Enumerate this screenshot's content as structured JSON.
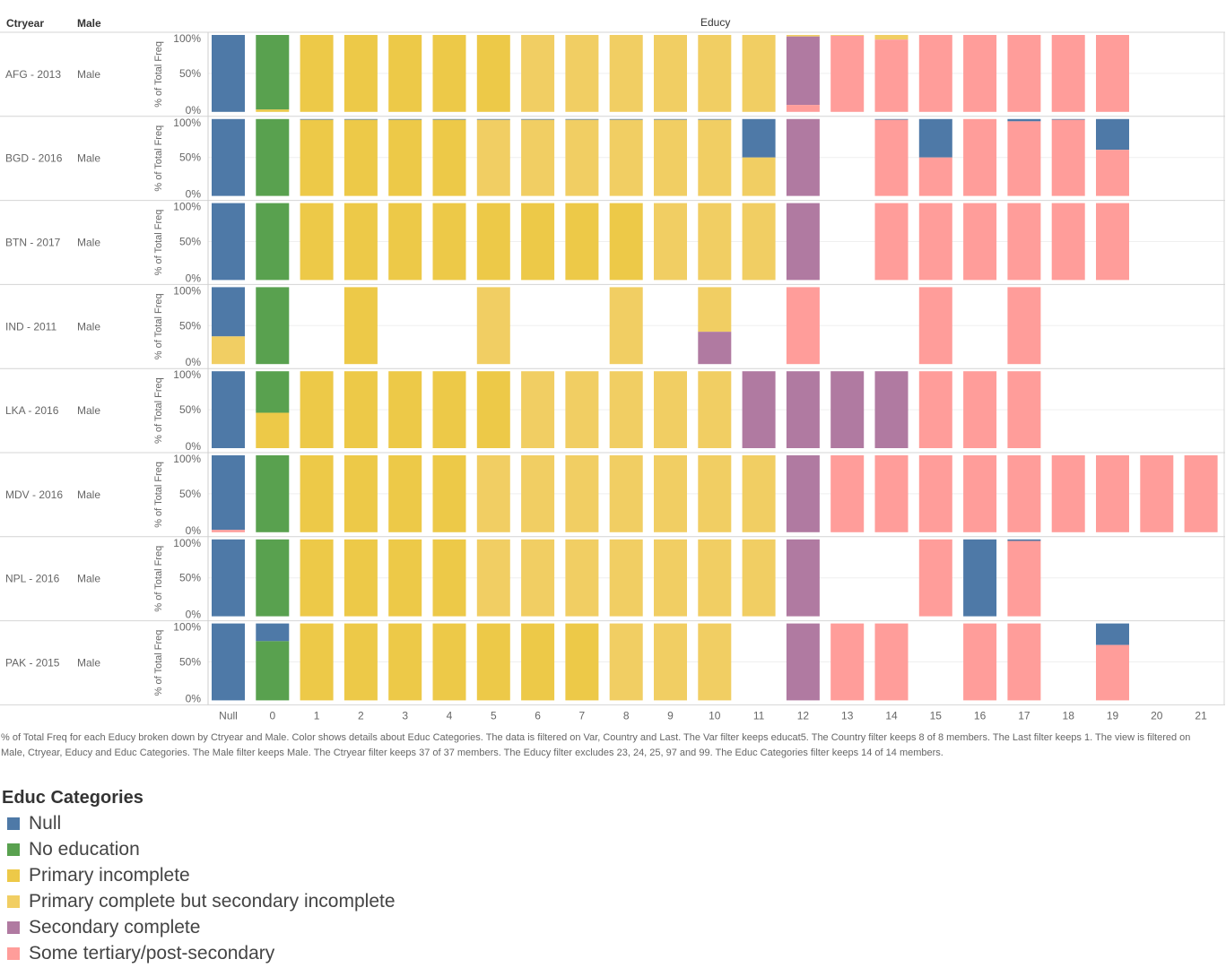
{
  "headers": {
    "ctryear": "Ctryear",
    "male": "Male",
    "educy": "Educy"
  },
  "axis": {
    "ylabel": "% of Total Freq",
    "ticks": [
      "100%",
      "50%",
      "0%"
    ]
  },
  "caption": "% of Total Freq for each Educy broken down by Ctryear and Male.  Color shows details about Educ Categories. The data is filtered on Var, Country and Last. The Var filter keeps educat5. The Country filter keeps 8 of 8 members. The Last filter keeps 1. The view is filtered on Male, Ctryear, Educy and Educ Categories. The Male filter keeps Male. The Ctryear filter keeps 37 of 37 members. The Educy filter excludes 23, 24, 25, 97 and 99. The Educ Categories filter keeps 14 of 14 members.",
  "legend": {
    "title": "Educ Categories",
    "items": [
      {
        "key": "null",
        "label": "Null",
        "color": "#4e79a7"
      },
      {
        "key": "noed",
        "label": "No education",
        "color": "#59a14f"
      },
      {
        "key": "pinc",
        "label": "Primary incomplete",
        "color": "#edc948"
      },
      {
        "key": "pcomp",
        "label": "Primary complete but secondary incomplete",
        "color": "#f1ce63"
      },
      {
        "key": "scomp",
        "label": "Secondary complete",
        "color": "#b07aa1"
      },
      {
        "key": "tert",
        "label": "Some tertiary/post-secondary",
        "color": "#ff9d9a"
      }
    ]
  },
  "chart_data": {
    "type": "bar",
    "stacked": true,
    "normalized": true,
    "ylim": [
      0,
      100
    ],
    "categories": [
      "Null",
      "0",
      "1",
      "2",
      "3",
      "4",
      "5",
      "6",
      "7",
      "8",
      "9",
      "10",
      "11",
      "12",
      "13",
      "14",
      "15",
      "16",
      "17",
      "18",
      "19",
      "20",
      "21"
    ],
    "rows": [
      {
        "ctryear": "AFG - 2013",
        "male": "Male",
        "bars": {
          "Null": [
            [
              "null",
              100
            ]
          ],
          "0": [
            [
              "noed",
              97
            ],
            [
              "pinc",
              3
            ]
          ],
          "1": [
            [
              "pinc",
              100
            ]
          ],
          "2": [
            [
              "pinc",
              100
            ]
          ],
          "3": [
            [
              "pinc",
              100
            ]
          ],
          "4": [
            [
              "pinc",
              100
            ]
          ],
          "5": [
            [
              "pinc",
              100
            ]
          ],
          "6": [
            [
              "pcomp",
              100
            ]
          ],
          "7": [
            [
              "pcomp",
              100
            ]
          ],
          "8": [
            [
              "pcomp",
              100
            ]
          ],
          "9": [
            [
              "pcomp",
              100
            ]
          ],
          "10": [
            [
              "pcomp",
              100
            ]
          ],
          "11": [
            [
              "pcomp",
              100
            ]
          ],
          "12": [
            [
              "pcomp",
              2
            ],
            [
              "scomp",
              89
            ],
            [
              "tert",
              9
            ]
          ],
          "13": [
            [
              "pcomp",
              1
            ],
            [
              "tert",
              99
            ]
          ],
          "14": [
            [
              "pcomp",
              6
            ],
            [
              "tert",
              94
            ]
          ],
          "15": [
            [
              "tert",
              100
            ]
          ],
          "16": [
            [
              "tert",
              100
            ]
          ],
          "17": [
            [
              "tert",
              100
            ]
          ],
          "18": [
            [
              "tert",
              100
            ]
          ],
          "19": [
            [
              "tert",
              100
            ]
          ]
        }
      },
      {
        "ctryear": "BGD - 2016",
        "male": "Male",
        "bars": {
          "Null": [
            [
              "null",
              100
            ]
          ],
          "0": [
            [
              "noed",
              100
            ]
          ],
          "1": [
            [
              "null",
              1
            ],
            [
              "pinc",
              99
            ]
          ],
          "2": [
            [
              "null",
              1
            ],
            [
              "pinc",
              99
            ]
          ],
          "3": [
            [
              "null",
              1
            ],
            [
              "pinc",
              99
            ]
          ],
          "4": [
            [
              "null",
              1
            ],
            [
              "pinc",
              99
            ]
          ],
          "5": [
            [
              "null",
              1
            ],
            [
              "pcomp",
              99
            ]
          ],
          "6": [
            [
              "null",
              1
            ],
            [
              "pcomp",
              99
            ]
          ],
          "7": [
            [
              "null",
              1
            ],
            [
              "pcomp",
              99
            ]
          ],
          "8": [
            [
              "null",
              1
            ],
            [
              "pcomp",
              99
            ]
          ],
          "9": [
            [
              "null",
              1
            ],
            [
              "pcomp",
              99
            ]
          ],
          "10": [
            [
              "null",
              1
            ],
            [
              "pcomp",
              99
            ]
          ],
          "11": [
            [
              "null",
              50
            ],
            [
              "pcomp",
              50
            ]
          ],
          "12": [
            [
              "scomp",
              100
            ]
          ],
          "14": [
            [
              "null",
              1
            ],
            [
              "tert",
              99
            ]
          ],
          "15": [
            [
              "null",
              50
            ],
            [
              "tert",
              50
            ]
          ],
          "16": [
            [
              "tert",
              100
            ]
          ],
          "17": [
            [
              "null",
              3
            ],
            [
              "tert",
              97
            ]
          ],
          "18": [
            [
              "null",
              1
            ],
            [
              "tert",
              99
            ]
          ],
          "19": [
            [
              "null",
              40
            ],
            [
              "tert",
              60
            ]
          ]
        }
      },
      {
        "ctryear": "BTN - 2017",
        "male": "Male",
        "bars": {
          "Null": [
            [
              "null",
              100
            ]
          ],
          "0": [
            [
              "noed",
              100
            ]
          ],
          "1": [
            [
              "pinc",
              100
            ]
          ],
          "2": [
            [
              "pinc",
              100
            ]
          ],
          "3": [
            [
              "pinc",
              100
            ]
          ],
          "4": [
            [
              "pinc",
              100
            ]
          ],
          "5": [
            [
              "pinc",
              100
            ]
          ],
          "6": [
            [
              "pinc",
              100
            ]
          ],
          "7": [
            [
              "pinc",
              100
            ]
          ],
          "8": [
            [
              "pinc",
              100
            ]
          ],
          "9": [
            [
              "pcomp",
              100
            ]
          ],
          "10": [
            [
              "pcomp",
              100
            ]
          ],
          "11": [
            [
              "pcomp",
              100
            ]
          ],
          "12": [
            [
              "scomp",
              100
            ]
          ],
          "14": [
            [
              "tert",
              100
            ]
          ],
          "15": [
            [
              "tert",
              100
            ]
          ],
          "16": [
            [
              "tert",
              100
            ]
          ],
          "17": [
            [
              "tert",
              100
            ]
          ],
          "18": [
            [
              "tert",
              100
            ]
          ],
          "19": [
            [
              "tert",
              100
            ]
          ]
        }
      },
      {
        "ctryear": "IND - 2011",
        "male": "Male",
        "bars": {
          "Null": [
            [
              "null",
              64
            ],
            [
              "pcomp",
              36
            ]
          ],
          "0": [
            [
              "noed",
              100
            ]
          ],
          "2": [
            [
              "pinc",
              100
            ]
          ],
          "5": [
            [
              "pcomp",
              100
            ]
          ],
          "8": [
            [
              "pcomp",
              100
            ]
          ],
          "10": [
            [
              "pcomp",
              58
            ],
            [
              "scomp",
              42
            ]
          ],
          "12": [
            [
              "tert",
              100
            ]
          ],
          "15": [
            [
              "tert",
              100
            ]
          ],
          "17": [
            [
              "tert",
              100
            ]
          ]
        }
      },
      {
        "ctryear": "LKA - 2016",
        "male": "Male",
        "bars": {
          "Null": [
            [
              "null",
              100
            ]
          ],
          "0": [
            [
              "noed",
              54
            ],
            [
              "pinc",
              46
            ]
          ],
          "1": [
            [
              "pinc",
              100
            ]
          ],
          "2": [
            [
              "pinc",
              100
            ]
          ],
          "3": [
            [
              "pinc",
              100
            ]
          ],
          "4": [
            [
              "pinc",
              100
            ]
          ],
          "5": [
            [
              "pinc",
              100
            ]
          ],
          "6": [
            [
              "pcomp",
              100
            ]
          ],
          "7": [
            [
              "pcomp",
              100
            ]
          ],
          "8": [
            [
              "pcomp",
              100
            ]
          ],
          "9": [
            [
              "pcomp",
              100
            ]
          ],
          "10": [
            [
              "pcomp",
              100
            ]
          ],
          "11": [
            [
              "scomp",
              100
            ]
          ],
          "12": [
            [
              "scomp",
              100
            ]
          ],
          "13": [
            [
              "scomp",
              100
            ]
          ],
          "14": [
            [
              "scomp",
              100
            ]
          ],
          "15": [
            [
              "tert",
              100
            ]
          ],
          "16": [
            [
              "tert",
              100
            ]
          ],
          "17": [
            [
              "tert",
              100
            ]
          ]
        }
      },
      {
        "ctryear": "MDV - 2016",
        "male": "Male",
        "bars": {
          "Null": [
            [
              "null",
              97
            ],
            [
              "tert",
              3
            ]
          ],
          "0": [
            [
              "noed",
              100
            ]
          ],
          "1": [
            [
              "pinc",
              100
            ]
          ],
          "2": [
            [
              "pinc",
              100
            ]
          ],
          "3": [
            [
              "pinc",
              100
            ]
          ],
          "4": [
            [
              "pinc",
              100
            ]
          ],
          "5": [
            [
              "pcomp",
              100
            ]
          ],
          "6": [
            [
              "pcomp",
              100
            ]
          ],
          "7": [
            [
              "pcomp",
              100
            ]
          ],
          "8": [
            [
              "pcomp",
              100
            ]
          ],
          "9": [
            [
              "pcomp",
              100
            ]
          ],
          "10": [
            [
              "pcomp",
              100
            ]
          ],
          "11": [
            [
              "pcomp",
              100
            ]
          ],
          "12": [
            [
              "scomp",
              100
            ]
          ],
          "13": [
            [
              "tert",
              100
            ]
          ],
          "14": [
            [
              "tert",
              100
            ]
          ],
          "15": [
            [
              "tert",
              100
            ]
          ],
          "16": [
            [
              "tert",
              100
            ]
          ],
          "17": [
            [
              "tert",
              100
            ]
          ],
          "18": [
            [
              "tert",
              100
            ]
          ],
          "19": [
            [
              "tert",
              100
            ]
          ],
          "20": [
            [
              "tert",
              100
            ]
          ],
          "21": [
            [
              "tert",
              100
            ]
          ]
        }
      },
      {
        "ctryear": "NPL - 2016",
        "male": "Male",
        "bars": {
          "Null": [
            [
              "null",
              100
            ]
          ],
          "0": [
            [
              "noed",
              100
            ]
          ],
          "1": [
            [
              "pinc",
              100
            ]
          ],
          "2": [
            [
              "pinc",
              100
            ]
          ],
          "3": [
            [
              "pinc",
              100
            ]
          ],
          "4": [
            [
              "pinc",
              100
            ]
          ],
          "5": [
            [
              "pcomp",
              100
            ]
          ],
          "6": [
            [
              "pcomp",
              100
            ]
          ],
          "7": [
            [
              "pcomp",
              100
            ]
          ],
          "8": [
            [
              "pcomp",
              100
            ]
          ],
          "9": [
            [
              "pcomp",
              100
            ]
          ],
          "10": [
            [
              "pcomp",
              100
            ]
          ],
          "11": [
            [
              "pcomp",
              100
            ]
          ],
          "12": [
            [
              "scomp",
              100
            ]
          ],
          "15": [
            [
              "tert",
              100
            ]
          ],
          "16": [
            [
              "null",
              100
            ]
          ],
          "17": [
            [
              "null",
              2
            ],
            [
              "tert",
              98
            ]
          ]
        }
      },
      {
        "ctryear": "PAK - 2015",
        "male": "Male",
        "bars": {
          "Null": [
            [
              "null",
              100
            ]
          ],
          "0": [
            [
              "null",
              23
            ],
            [
              "noed",
              77
            ]
          ],
          "1": [
            [
              "pinc",
              100
            ]
          ],
          "2": [
            [
              "pinc",
              100
            ]
          ],
          "3": [
            [
              "pinc",
              100
            ]
          ],
          "4": [
            [
              "pinc",
              100
            ]
          ],
          "5": [
            [
              "pinc",
              100
            ]
          ],
          "6": [
            [
              "pinc",
              100
            ]
          ],
          "7": [
            [
              "pinc",
              100
            ]
          ],
          "8": [
            [
              "pcomp",
              100
            ]
          ],
          "9": [
            [
              "pcomp",
              100
            ]
          ],
          "10": [
            [
              "pcomp",
              100
            ]
          ],
          "12": [
            [
              "scomp",
              100
            ]
          ],
          "13": [
            [
              "tert",
              100
            ]
          ],
          "14": [
            [
              "tert",
              100
            ]
          ],
          "16": [
            [
              "tert",
              100
            ]
          ],
          "17": [
            [
              "tert",
              100
            ]
          ],
          "19": [
            [
              "null",
              28
            ],
            [
              "tert",
              72
            ]
          ]
        }
      }
    ]
  }
}
